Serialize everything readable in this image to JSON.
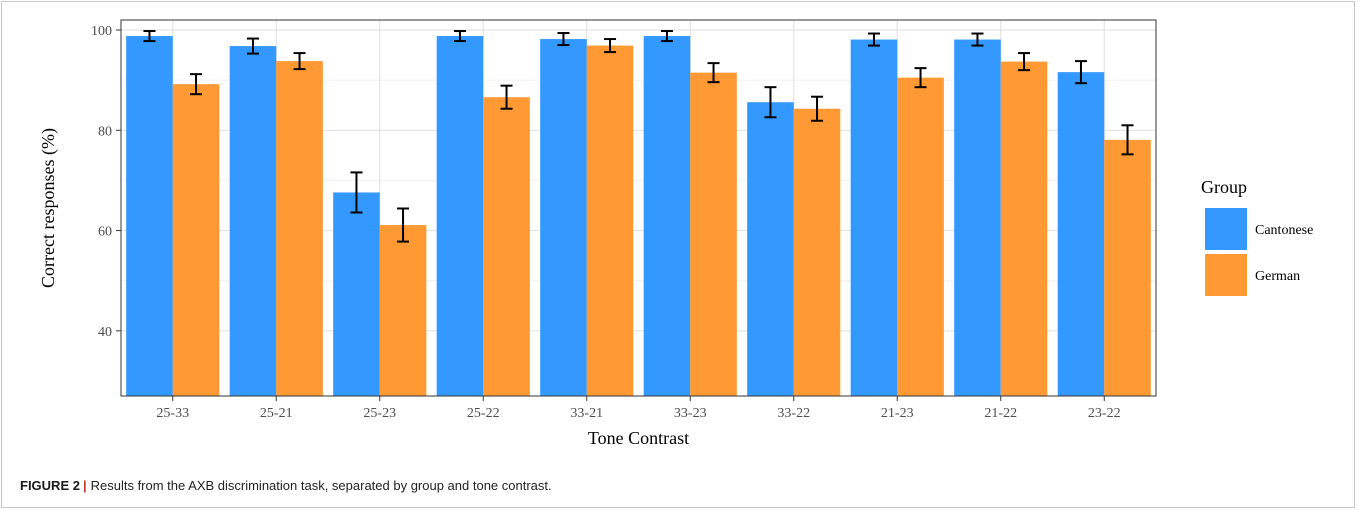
{
  "figure": {
    "label": "FIGURE 2",
    "separator": "|",
    "caption": "Results from the AXB discrimination task, separated by group and tone contrast."
  },
  "chart_data": {
    "type": "bar",
    "xlabel": "Tone Contrast",
    "ylabel": "Correct responses (%)",
    "ylim": [
      27,
      102
    ],
    "yticks": [
      40,
      60,
      80,
      100
    ],
    "grid": true,
    "legend_position": "right",
    "legend_title": "Group",
    "categories": [
      "25-33",
      "25-21",
      "25-23",
      "25-22",
      "33-21",
      "33-23",
      "33-22",
      "21-23",
      "21-22",
      "23-22"
    ],
    "series": [
      {
        "name": "Cantonese",
        "color": "#3399ff",
        "values": [
          98.8,
          96.8,
          67.6,
          98.8,
          98.2,
          98.8,
          85.6,
          98.1,
          98.1,
          91.6
        ],
        "error": [
          1.0,
          1.5,
          4.0,
          1.0,
          1.2,
          1.0,
          3.0,
          1.2,
          1.2,
          2.2
        ]
      },
      {
        "name": "German",
        "color": "#ff9933",
        "values": [
          89.2,
          93.8,
          61.1,
          86.6,
          96.9,
          91.5,
          84.3,
          90.5,
          93.7,
          78.1
        ],
        "error": [
          2.0,
          1.6,
          3.3,
          2.3,
          1.3,
          1.9,
          2.4,
          1.9,
          1.7,
          2.9
        ]
      }
    ]
  }
}
